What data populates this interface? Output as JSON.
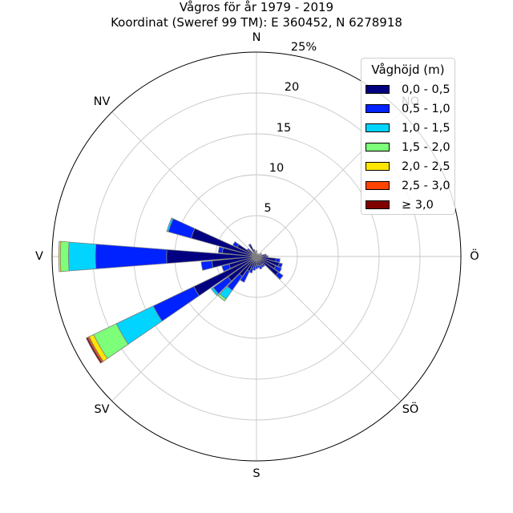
{
  "chart_data": {
    "type": "windrose",
    "title": "Vågros för år 1979 - 2019",
    "subtitle": "Koordinat (Sweref 99 TM): E 360452, N 6278918",
    "directions": [
      "N",
      "NV",
      "V",
      "SV",
      "S",
      "SÖ",
      "Ö",
      "NO"
    ],
    "radial_ticks": [
      "5",
      "10",
      "15",
      "20",
      "25%"
    ],
    "radial_max": 25,
    "sector_width_deg": 10,
    "legend": {
      "title": "Våghöjd (m)",
      "placement": "top-right",
      "bins": [
        {
          "label": "0,0 - 0,5",
          "color": "#000080"
        },
        {
          "label": "0,5 - 1,0",
          "color": "#0022ff"
        },
        {
          "label": "1,0 - 1,5",
          "color": "#00d4ff"
        },
        {
          "label": "1,5 - 2,0",
          "color": "#7dff7a"
        },
        {
          "label": "2,0 - 2,5",
          "color": "#ffe600"
        },
        {
          "label": "2,5 - 3,0",
          "color": "#ff4400"
        },
        {
          "label": "≥ 3,0",
          "color": "#800000"
        }
      ]
    },
    "sectors": [
      {
        "direction_deg": 0,
        "values": [
          0.6,
          0.1,
          0,
          0,
          0,
          0,
          0
        ]
      },
      {
        "direction_deg": 30,
        "values": [
          0.4,
          0,
          0,
          0,
          0,
          0,
          0
        ]
      },
      {
        "direction_deg": 60,
        "values": [
          0.6,
          0.1,
          0,
          0,
          0,
          0,
          0
        ]
      },
      {
        "direction_deg": 80,
        "values": [
          1.0,
          0.2,
          0,
          0,
          0,
          0,
          0
        ]
      },
      {
        "direction_deg": 90,
        "values": [
          1.2,
          0.2,
          0,
          0,
          0,
          0,
          0
        ]
      },
      {
        "direction_deg": 100,
        "values": [
          2.4,
          0.5,
          0,
          0,
          0,
          0,
          0
        ]
      },
      {
        "direction_deg": 110,
        "values": [
          2.9,
          0.4,
          0,
          0,
          0,
          0,
          0
        ]
      },
      {
        "direction_deg": 120,
        "values": [
          2.6,
          0.8,
          0,
          0,
          0,
          0,
          0
        ]
      },
      {
        "direction_deg": 130,
        "values": [
          3.3,
          0.7,
          0,
          0,
          0,
          0,
          0
        ]
      },
      {
        "direction_deg": 140,
        "values": [
          1.2,
          0.3,
          0,
          0,
          0,
          0,
          0
        ]
      },
      {
        "direction_deg": 150,
        "values": [
          1.2,
          0.3,
          0,
          0,
          0,
          0,
          0
        ]
      },
      {
        "direction_deg": 160,
        "values": [
          1.2,
          0.4,
          0,
          0,
          0,
          0,
          0
        ]
      },
      {
        "direction_deg": 170,
        "values": [
          1.1,
          0.3,
          0,
          0,
          0,
          0,
          0
        ]
      },
      {
        "direction_deg": 180,
        "values": [
          1.0,
          0.5,
          0,
          0,
          0,
          0,
          0
        ]
      },
      {
        "direction_deg": 190,
        "values": [
          1.2,
          0.5,
          0,
          0,
          0,
          0,
          0
        ]
      },
      {
        "direction_deg": 200,
        "values": [
          1.5,
          0.6,
          0,
          0,
          0,
          0,
          0
        ]
      },
      {
        "direction_deg": 210,
        "values": [
          2.0,
          1.5,
          0,
          0,
          0,
          0,
          0
        ]
      },
      {
        "direction_deg": 220,
        "values": [
          3.0,
          2.1,
          1.3,
          0.3,
          0,
          0,
          0
        ]
      },
      {
        "direction_deg": 230,
        "values": [
          4.3,
          2.2,
          0.3,
          0,
          0,
          0,
          0
        ]
      },
      {
        "direction_deg": 240,
        "values": [
          8.5,
          5.5,
          5.0,
          3.1,
          0.6,
          0.2,
          0.2
        ]
      },
      {
        "direction_deg": 250,
        "values": [
          3.5,
          0.9,
          0,
          0,
          0,
          0,
          0
        ]
      },
      {
        "direction_deg": 260,
        "values": [
          5.5,
          1.3,
          0,
          0,
          0,
          0,
          0
        ]
      },
      {
        "direction_deg": 270,
        "values": [
          11.0,
          8.7,
          3.3,
          1.0,
          0.2,
          0,
          0
        ]
      },
      {
        "direction_deg": 280,
        "values": [
          4.2,
          0.5,
          0,
          0,
          0,
          0,
          0
        ]
      },
      {
        "direction_deg": 290,
        "values": [
          8.3,
          2.9,
          0.2,
          0,
          0,
          0,
          0
        ]
      },
      {
        "direction_deg": 300,
        "values": [
          2.6,
          0.6,
          0,
          0,
          0,
          0,
          0
        ]
      },
      {
        "direction_deg": 310,
        "values": [
          1.2,
          0.2,
          0,
          0,
          0,
          0,
          0
        ]
      },
      {
        "direction_deg": 330,
        "values": [
          1.5,
          0.2,
          0,
          0,
          0,
          0,
          0
        ]
      },
      {
        "direction_deg": 340,
        "values": [
          0.8,
          0.1,
          0,
          0,
          0,
          0,
          0
        ]
      }
    ]
  }
}
